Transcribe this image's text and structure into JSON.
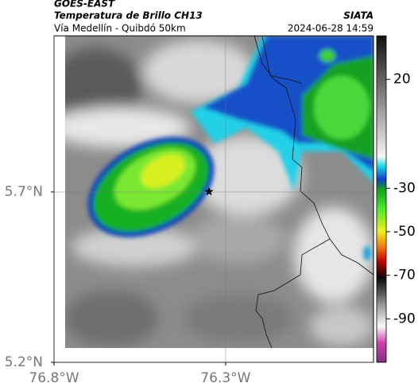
{
  "header": {
    "satellite": "GOES-EAST",
    "product": "Temperatura de Brillo CH13",
    "region": "Vía Medellín - Quibdó 50km",
    "agency": "SIATA",
    "datetime": "2024-06-28 14:59"
  },
  "map": {
    "xlim": [
      -76.8,
      -75.869
    ],
    "ylim": [
      5.2,
      6.158
    ],
    "xticks": [
      {
        "value": -76.8,
        "label": "76.8°W"
      },
      {
        "value": -76.3,
        "label": "76.3°W"
      }
    ],
    "yticks": [
      {
        "value": 5.2,
        "label": "5.2°N"
      },
      {
        "value": 5.7,
        "label": "5.7°N"
      }
    ],
    "grid": true
  },
  "colorbar": {
    "lim": [
      -110,
      40
    ],
    "ticks": [
      20,
      -30,
      -50,
      -70,
      -90
    ]
  }
}
